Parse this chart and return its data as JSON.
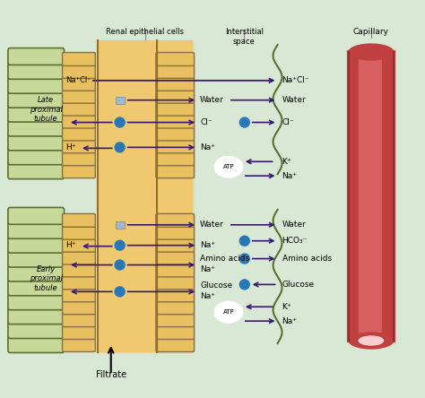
{
  "bg_color": "#d8e8d5",
  "cell_bg": "#f0c870",
  "outer_coil_fill": "#c8d898",
  "outer_coil_border": "#5a7030",
  "inner_fold_fill": "#e8c060",
  "inner_fold_border": "#8a7040",
  "arrow_color": "#3a1870",
  "dot_color": "#2878b8",
  "cap_color": "#c04040",
  "cap_dark": "#903030",
  "cap_inner": "#f8d0d0",
  "atp_fill": "#ffffff",
  "water_rect": "#a0b8d0",
  "figsize": [
    4.74,
    4.44
  ],
  "dpi": 100,
  "title": "Filtrate",
  "bottom_labels": [
    "Renal epithelial cells",
    "Interstitial\nspace",
    "Capillary"
  ],
  "early_label": "Early\nproximal\ntubule",
  "late_label": "Late\nproximal\ntubule",
  "nacl_label": "Na⁺Cl⁻"
}
